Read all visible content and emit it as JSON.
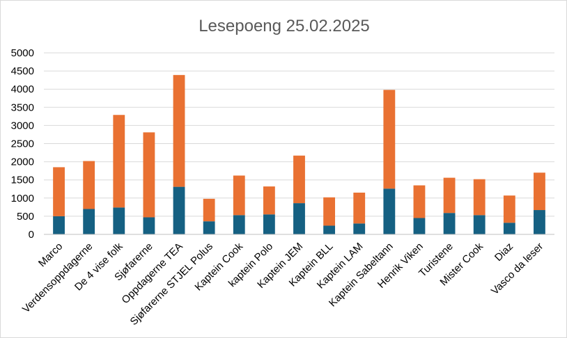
{
  "chart_data": {
    "type": "bar",
    "stacked": true,
    "title": "Lesepoeng 25.02.2025",
    "xlabel": "",
    "ylabel": "",
    "ylim": [
      0,
      5000
    ],
    "yticks": [
      0,
      500,
      1000,
      1500,
      2000,
      2500,
      3000,
      3500,
      4000,
      4500,
      5000
    ],
    "grid": true,
    "legend": "none",
    "categories": [
      "Marco",
      "Verdensoppdagerne",
      "De 4 vise folk",
      "Sjøfarerne",
      "Oppdagerne TEA",
      "Sjøfarerne STJEL Polus",
      "Kaptein Cook",
      "kaptein Polo",
      "Kaptein JEM",
      "Kaptein BLL",
      "Kaptein LAM",
      "Kaptein Sabeltann",
      "Henrik Viken",
      "Turistene",
      "Mister Cook",
      "Diaz",
      "Vasco da leser"
    ],
    "series": [
      {
        "color": "#156082",
        "values": [
          500,
          700,
          740,
          470,
          1310,
          360,
          530,
          550,
          860,
          240,
          300,
          1260,
          450,
          590,
          530,
          320,
          670
        ]
      },
      {
        "color": "#E97132",
        "values": [
          1350,
          1320,
          2550,
          2340,
          3080,
          620,
          1090,
          770,
          1310,
          780,
          850,
          2720,
          900,
          970,
          990,
          750,
          1030
        ]
      }
    ]
  }
}
